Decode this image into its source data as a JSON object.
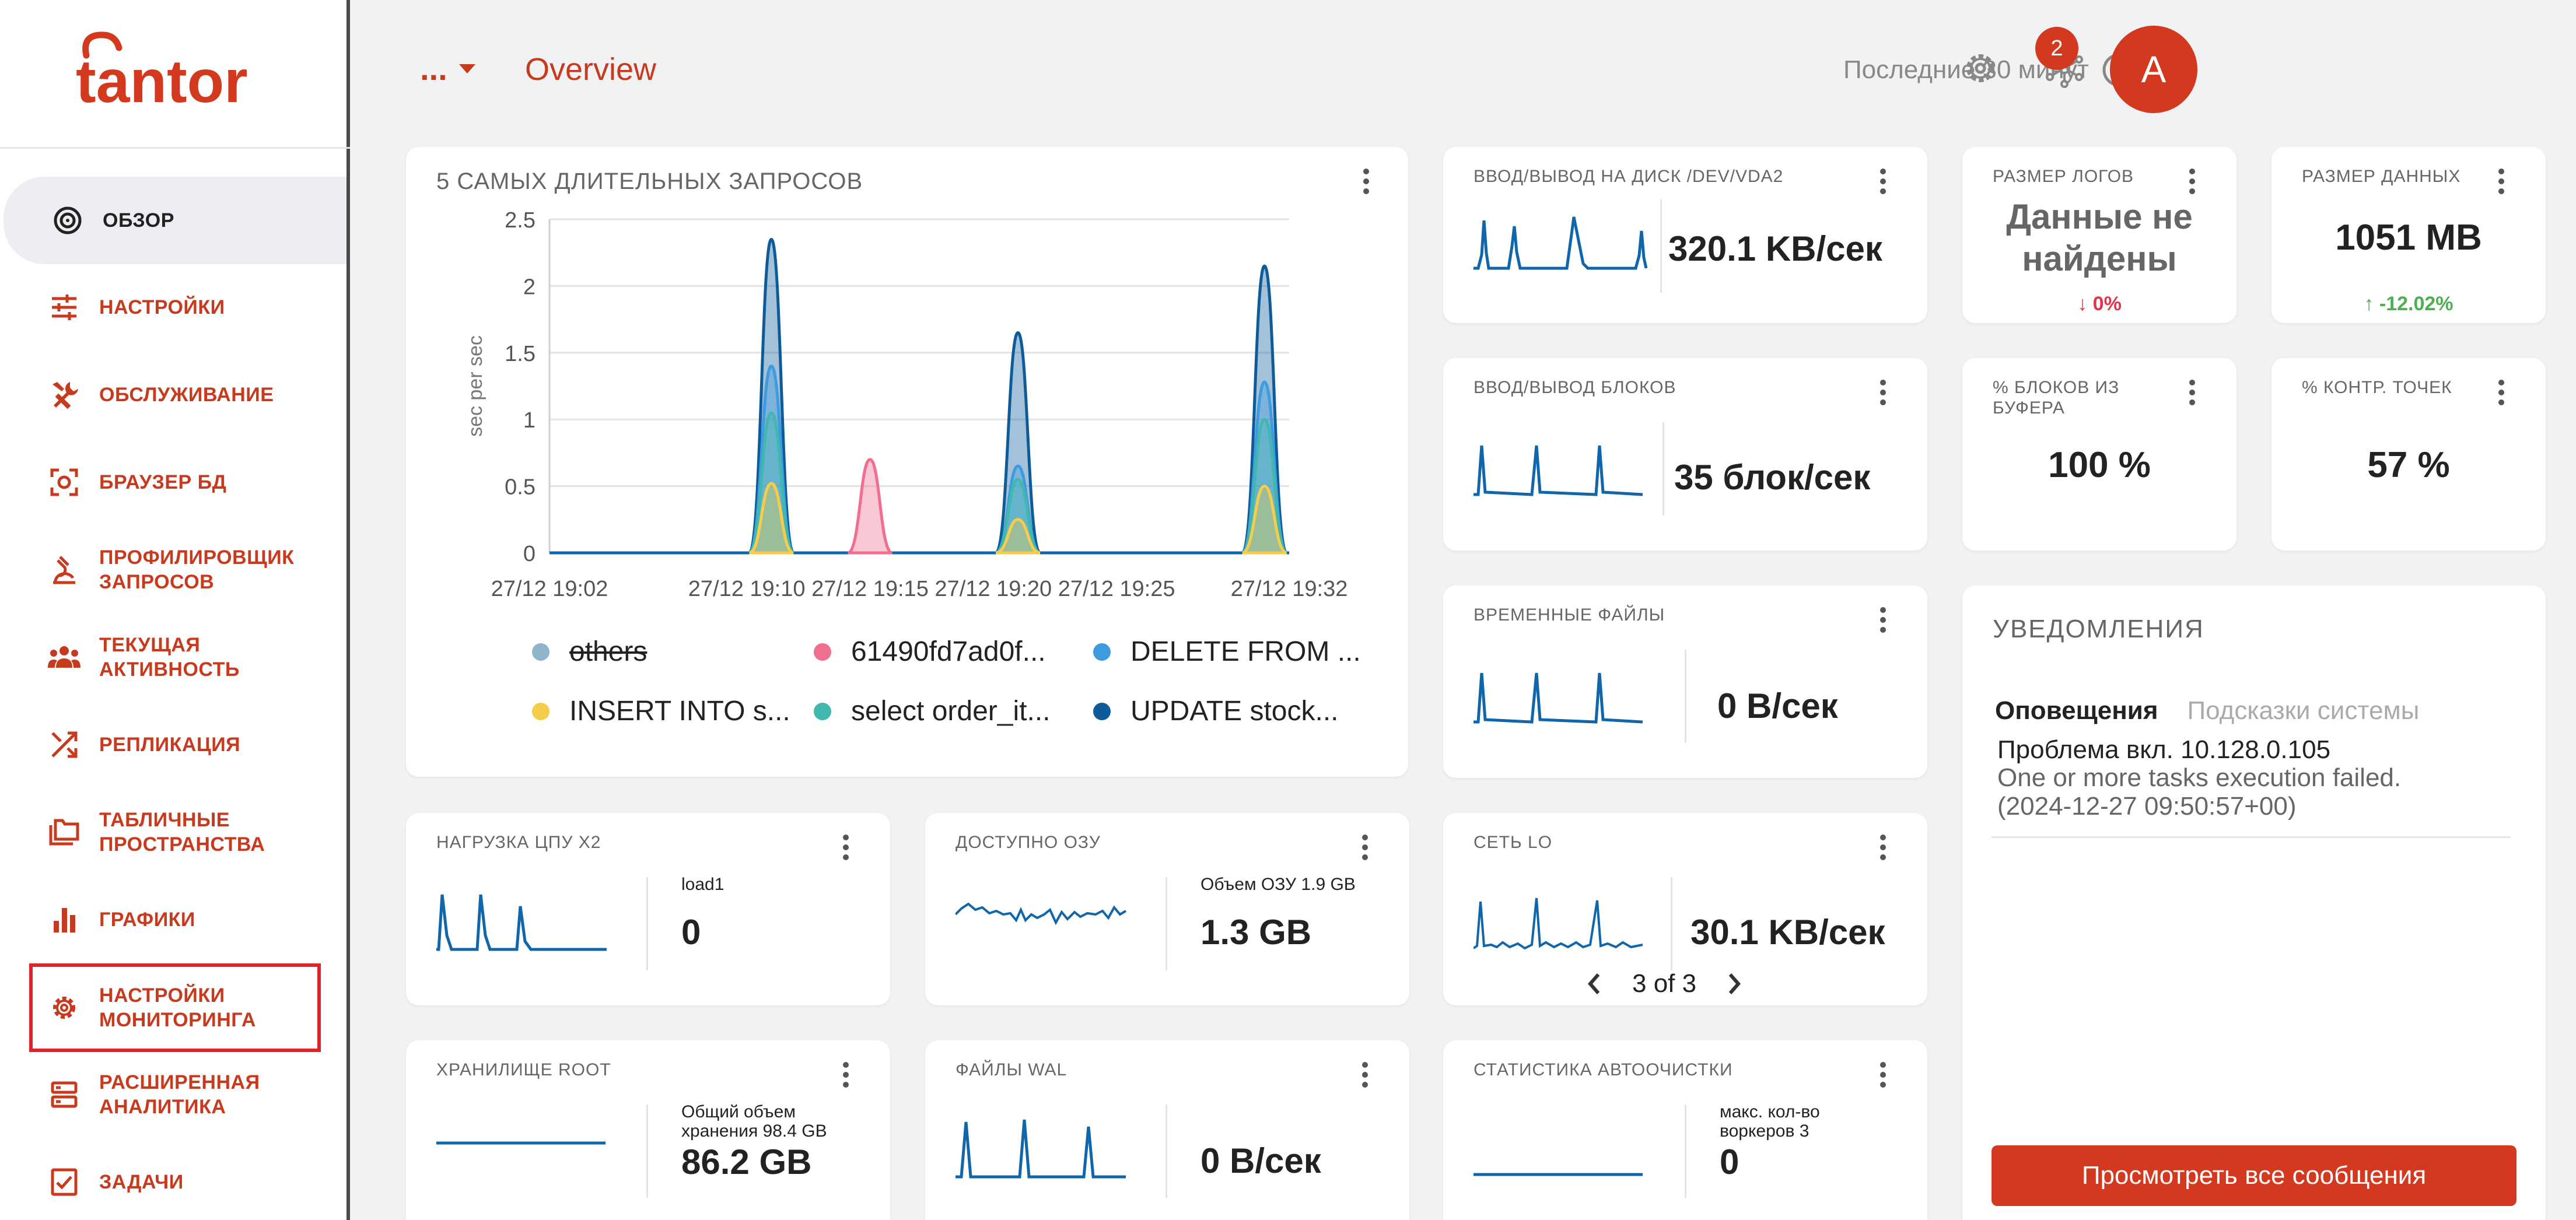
{
  "brand": {
    "logo_text": "tantor",
    "accent": "#c83a1e"
  },
  "sidebar": {
    "items": [
      {
        "label": "ОБЗОР",
        "icon": "overview-target-icon"
      },
      {
        "label": "НАСТРОЙКИ",
        "icon": "sliders-icon"
      },
      {
        "label": "ОБСЛУЖИВАНИЕ",
        "icon": "tools-icon"
      },
      {
        "label": "БРАУЗЕР БД",
        "icon": "db-browser-icon"
      },
      {
        "label": "ПРОФИЛИРОВЩИК ЗАПРОСОВ",
        "icon": "profiler-icon"
      },
      {
        "label": "ТЕКУЩАЯ АКТИВНОСТЬ",
        "icon": "activity-users-icon"
      },
      {
        "label": "РЕПЛИКАЦИЯ",
        "icon": "replication-shuffle-icon"
      },
      {
        "label": "ТАБЛИЧНЫЕ ПРОСТРАНСТВА",
        "icon": "folders-icon"
      },
      {
        "label": "ГРАФИКИ",
        "icon": "bar-chart-icon"
      },
      {
        "label": "НАСТРОЙКИ МОНИТОРИНГА",
        "icon": "gear-icon"
      },
      {
        "label": "РАСШИРЕННАЯ АНАЛИТИКА",
        "icon": "analytics-icon"
      },
      {
        "label": "ЗАДАЧИ",
        "icon": "task-check-icon"
      }
    ]
  },
  "header": {
    "context_label": "...",
    "title": "Overview",
    "time_range": "Последние 30 минут",
    "notification_count": "2",
    "avatar_letter": "A"
  },
  "top_queries": {
    "title": "5 САМЫХ ДЛИТЕЛЬНЫХ ЗАПРОСОВ",
    "ylabel": "sec per sec",
    "y_ticks": [
      "0",
      "0.5",
      "1",
      "1.5",
      "2",
      "2.5"
    ],
    "x_ticks": [
      "27/12 19:02",
      "27/12 19:10",
      "27/12 19:15",
      "27/12 19:20",
      "27/12 19:25",
      "27/12 19:32"
    ],
    "legend": [
      {
        "name": "others",
        "color": "#8fb4cc",
        "off": true
      },
      {
        "name": "61490fd7ad0f...",
        "color": "#f06e8e",
        "off": false
      },
      {
        "name": "DELETE FROM ...",
        "color": "#3f9be0",
        "off": false
      },
      {
        "name": "INSERT INTO s...",
        "color": "#f5cd4a",
        "off": false
      },
      {
        "name": "select order_it...",
        "color": "#40b8b0",
        "off": false
      },
      {
        "name": "UPDATE stock...",
        "color": "#0d5c99",
        "off": false
      }
    ]
  },
  "chart_data": {
    "type": "area",
    "title": "5 САМЫХ ДЛИТЕЛЬНЫХ ЗАПРОСОВ",
    "xlabel": "",
    "ylabel": "sec per sec",
    "ylim": [
      0,
      2.5
    ],
    "x_range": [
      "27/12 19:02",
      "27/12 19:32"
    ],
    "grid": true,
    "legend_position": "bottom",
    "peaks_at": [
      "27/12 19:11",
      "27/12 19:15",
      "27/12 19:21",
      "27/12 19:31"
    ],
    "series": [
      {
        "name": "UPDATE stock...",
        "values": [
          2.35,
          0,
          1.65,
          2.15
        ]
      },
      {
        "name": "DELETE FROM ...",
        "values": [
          1.4,
          0,
          0.65,
          1.28
        ]
      },
      {
        "name": "select order_it...",
        "values": [
          1.05,
          0,
          0.55,
          1.0
        ]
      },
      {
        "name": "INSERT INTO s...",
        "values": [
          0.52,
          0,
          0.25,
          0.5
        ]
      },
      {
        "name": "61490fd7ad0f...",
        "values": [
          0,
          0.7,
          0,
          0
        ]
      }
    ]
  },
  "metrics": {
    "disk_io": {
      "title": "ВВОД/ВЫВОД НА ДИСК /DEV/VDA2",
      "value": "320.1 KB/сек"
    },
    "block_io": {
      "title": "ВВОД/ВЫВОД БЛОКОВ",
      "value": "35 блок/сек"
    },
    "temp_files": {
      "title": "ВРЕМЕННЫЕ ФАЙЛЫ",
      "value": "0 B/сек"
    },
    "net_lo": {
      "title": "СЕТЬ LO",
      "value": "30.1 KB/сек",
      "pager": "3 of 3"
    },
    "autovacuum": {
      "title": "СТАТИСТИКА АВТООЧИСТКИ",
      "label": "макс. кол-во воркеров 3",
      "value": "0"
    },
    "cpu": {
      "title": "НАГРУЗКА ЦПУ X2",
      "label": "load1",
      "value": "0"
    },
    "ram": {
      "title": "ДОСТУПНО ОЗУ",
      "label": "Объем ОЗУ 1.9 GB",
      "value": "1.3 GB"
    },
    "storage": {
      "title": "ХРАНИЛИЩЕ ROOT",
      "label": "Общий объем хранения 98.4 GB",
      "value": "86.2 GB"
    },
    "wal": {
      "title": "ФАЙЛЫ WAL",
      "value": "0 B/сек"
    },
    "log_size": {
      "title": "РАЗМЕР ЛОГОВ",
      "value": "Данные не найдены",
      "delta": "0%",
      "delta_color": "#e0334d"
    },
    "data_size": {
      "title": "РАЗМЕР ДАННЫХ",
      "value": "1051 MB",
      "delta": "-12.02%",
      "delta_color": "#4caf50"
    },
    "buffer_hit": {
      "title": "% БЛОКОВ ИЗ БУФЕРА",
      "value": "100 %"
    },
    "checkpoints": {
      "title": "% КОНТР. ТОЧЕК",
      "value": "57 %"
    }
  },
  "notifications": {
    "title": "УВЕДОМЛЕНИЯ",
    "tabs": [
      "Оповещения",
      "Подсказки системы"
    ],
    "message_title": "Проблема вкл. 10.128.0.105",
    "message_body": "One or more tasks execution failed.",
    "message_time": "(2024-12-27 09:50:57+00)",
    "button": "Просмотреть все сообщения"
  }
}
